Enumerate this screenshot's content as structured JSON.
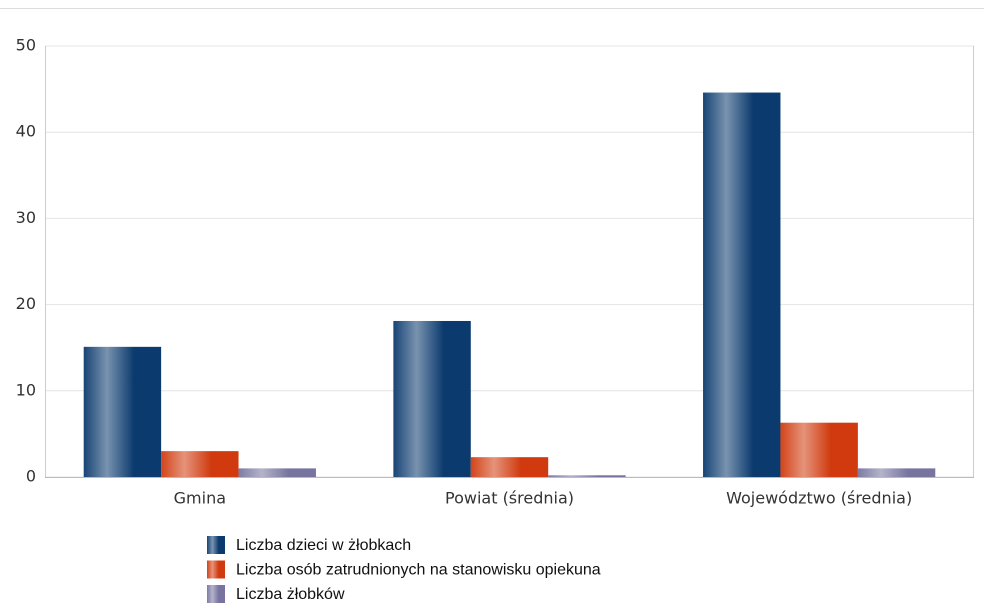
{
  "chart_data": {
    "type": "bar",
    "categories": [
      "Gmina",
      "Powiat (średnia)",
      "Województwo (średnia)"
    ],
    "series": [
      {
        "name": "Liczba dzieci w żłobkach",
        "color": "#0b3a6e",
        "values": [
          15.1,
          18.1,
          44.6
        ]
      },
      {
        "name": "Liczba osób zatrudnionych na stanowisku opiekuna",
        "color": "#d03a0e",
        "values": [
          3.0,
          2.3,
          6.3
        ]
      },
      {
        "name": "Liczba żłobków",
        "color": "#77749f",
        "values": [
          1.0,
          0.2,
          1.0
        ]
      }
    ],
    "ylim": [
      0,
      50
    ],
    "yticks": [
      0,
      10,
      20,
      30,
      40,
      50
    ],
    "grid": true
  }
}
